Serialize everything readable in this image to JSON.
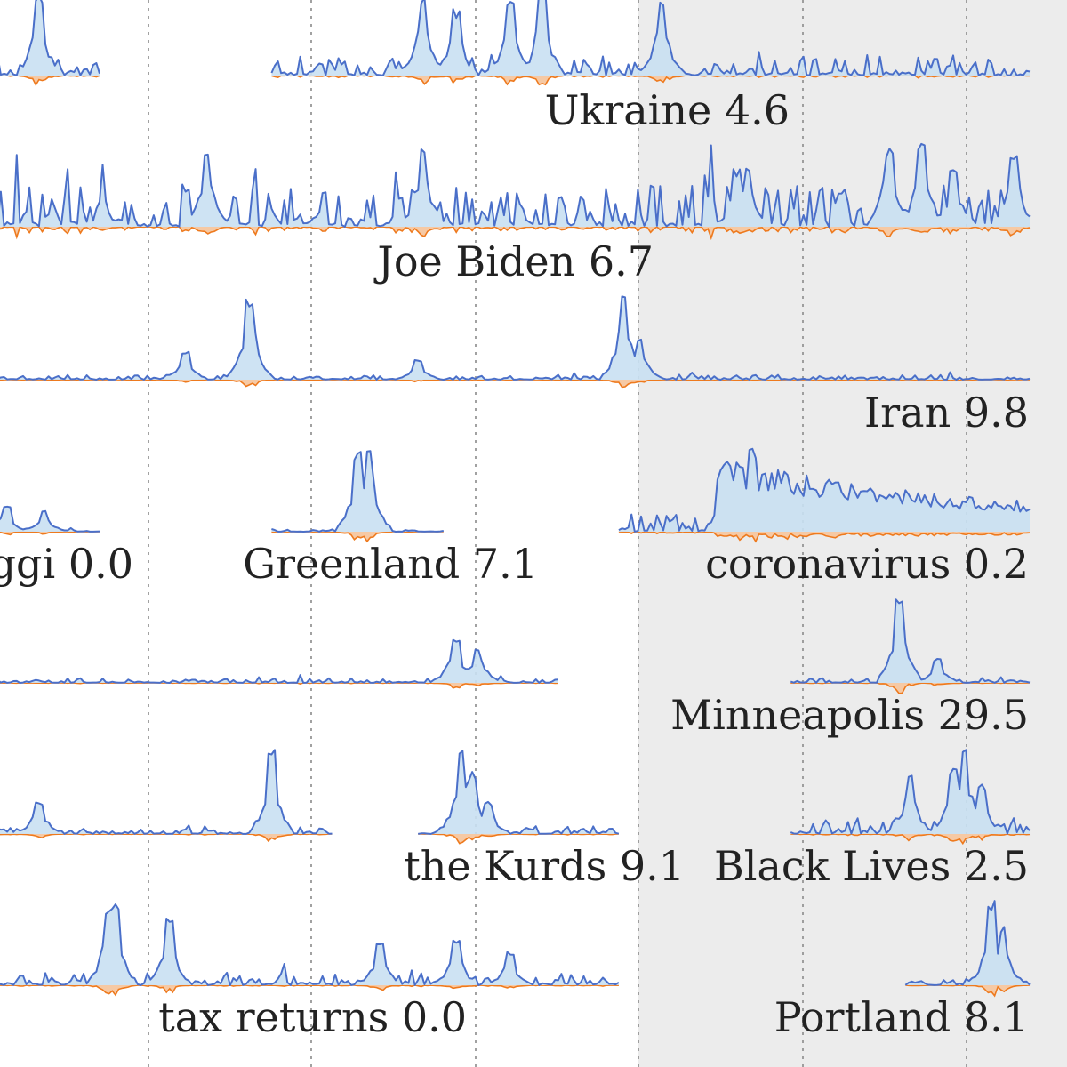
{
  "colors": {
    "shade": "#ececec",
    "positive_line": "#4a6fc9",
    "positive_fill": "#c9e0f2",
    "negative_line": "#ee7a1e",
    "grid": "#8a8a8a",
    "label": "#222222"
  },
  "chart_data": {
    "type": "area",
    "grid": "vertical dotted",
    "shaded_region": "right portion of plot",
    "series": [
      {
        "name": "Ukraine",
        "value": "4.6",
        "label": "Ukraine 4.6",
        "spans": [
          [
            0.0,
            0.14
          ],
          [
            0.3,
            1.0
          ]
        ],
        "peaks": [
          [
            0.02,
            0.9
          ],
          [
            0.085,
            1.0
          ],
          [
            0.44,
            1.0
          ],
          [
            0.47,
            0.8
          ],
          [
            0.52,
            0.9
          ],
          [
            0.55,
            1.0
          ],
          [
            0.66,
            0.9
          ]
        ],
        "noise": 0.13,
        "seed": 11
      },
      {
        "name": "Joe Biden",
        "value": "6.7",
        "label": "Joe Biden 6.7",
        "spans": [
          [
            0.0,
            1.0
          ]
        ],
        "peaks": [
          [
            0.145,
            0.3
          ],
          [
            0.24,
            0.9
          ],
          [
            0.44,
            0.95
          ],
          [
            0.73,
            0.7
          ],
          [
            0.74,
            0.7
          ],
          [
            0.87,
            0.95
          ],
          [
            0.9,
            1.0
          ],
          [
            0.93,
            0.7
          ],
          [
            0.985,
            0.9
          ]
        ],
        "noise": 0.28,
        "seed": 23,
        "neg_scale": 1.2
      },
      {
        "name": "Iran",
        "value": "9.8",
        "label": "Iran 9.8",
        "spans": [
          [
            0.0,
            1.0
          ]
        ],
        "peaks": [
          [
            0.22,
            0.35
          ],
          [
            0.28,
            1.0
          ],
          [
            0.435,
            0.25
          ],
          [
            0.625,
            1.0
          ],
          [
            0.64,
            0.5
          ]
        ],
        "noise": 0.03,
        "seed": 37
      },
      {
        "name": "Piaggi",
        "value": "0.0",
        "label": "ggi 0.0",
        "spans": [
          [
            0.0,
            0.14
          ]
        ],
        "peaks": [
          [
            0.055,
            0.3
          ],
          [
            0.09,
            0.25
          ]
        ],
        "noise": 0.03,
        "seed": 41
      },
      {
        "name": "Greenland",
        "value": "7.1",
        "label": "Greenland 7.1",
        "spans": [
          [
            0.3,
            0.46
          ]
        ],
        "peaks": [
          [
            0.38,
            0.95
          ],
          [
            0.39,
            1.0
          ]
        ],
        "noise": 0.02,
        "seed": 53
      },
      {
        "name": "coronavirus",
        "value": "0.2",
        "label": "coronavirus 0.2",
        "spans": [
          [
            0.62,
            1.0
          ]
        ],
        "peaks": [
          [
            0.72,
            0.85
          ],
          [
            0.745,
            1.0
          ],
          [
            0.775,
            0.75
          ],
          [
            0.82,
            0.6
          ],
          [
            0.88,
            0.35
          ],
          [
            0.91,
            0.3
          ],
          [
            0.95,
            0.3
          ]
        ],
        "noise": 0.12,
        "seed": 67,
        "decay_from": 0.71
      },
      {
        "name": "Minneapolis",
        "value": "29.5",
        "label": "Minneapolis 29.5",
        "spans": [
          [
            0.0,
            0.565
          ],
          [
            0.78,
            1.0
          ]
        ],
        "peaks": [
          [
            0.47,
            0.55
          ],
          [
            0.49,
            0.45
          ],
          [
            0.88,
            1.0
          ],
          [
            0.915,
            0.3
          ]
        ],
        "noise": 0.03,
        "seed": 79
      },
      {
        "name": "the Kurds",
        "value": "9.1",
        "label": "the Kurds 9.1",
        "spans": [
          [
            0.0,
            0.355
          ],
          [
            0.435,
            0.62
          ]
        ],
        "peaks": [
          [
            0.04,
            0.2
          ],
          [
            0.085,
            0.4
          ],
          [
            0.3,
            1.0
          ],
          [
            0.475,
            1.0
          ],
          [
            0.485,
            0.75
          ],
          [
            0.5,
            0.4
          ]
        ],
        "noise": 0.05,
        "seed": 83
      },
      {
        "name": "Black Lives",
        "value": "2.5",
        "label": "Black Lives 2.5",
        "spans": [
          [
            0.78,
            1.0
          ]
        ],
        "peaks": [
          [
            0.89,
            0.7
          ],
          [
            0.93,
            0.8
          ],
          [
            0.94,
            1.0
          ],
          [
            0.955,
            0.6
          ]
        ],
        "noise": 0.1,
        "seed": 97
      },
      {
        "name": "tax returns",
        "value": "0.0",
        "label": "tax returns 0.0",
        "spans": [
          [
            0.0,
            0.62
          ]
        ],
        "peaks": [
          [
            0.15,
            0.95
          ],
          [
            0.155,
            1.0
          ],
          [
            0.205,
            0.8
          ],
          [
            0.4,
            0.5
          ],
          [
            0.47,
            0.55
          ],
          [
            0.52,
            0.4
          ]
        ],
        "noise": 0.08,
        "seed": 101
      },
      {
        "name": "Portland",
        "value": "8.1",
        "label": "Portland 8.1",
        "spans": [
          [
            0.885,
            1.0
          ]
        ],
        "peaks": [
          [
            0.965,
            1.0
          ],
          [
            0.975,
            0.7
          ]
        ],
        "noise": 0.05,
        "seed": 113
      }
    ]
  }
}
